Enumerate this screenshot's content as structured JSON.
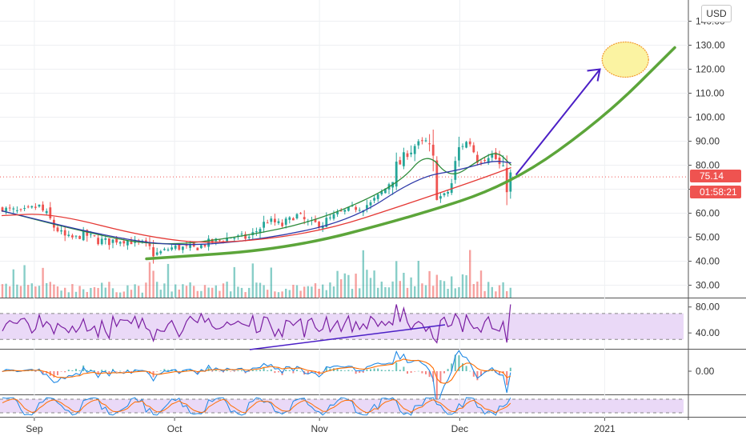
{
  "currency_button": "USD",
  "last_price": {
    "value": 75.14,
    "label": "75.14",
    "countdown": "01:58:21"
  },
  "colors": {
    "up": "#26a69a",
    "down": "#ef5350",
    "ma_green": "#2e8b3a",
    "ma_red": "#e53935",
    "ma_blue": "#2d39a8",
    "curve": "#5ca53a",
    "arrow": "#4b1fc6",
    "rsi": "#7b1fa2",
    "rsi_band": "#ead9f7",
    "target_fill": "#fbf3a2",
    "target_stroke": "#f29a2e",
    "macd_line": "#1e88e5",
    "signal_line": "#ff6d00"
  },
  "chart_data": [
    {
      "type": "candlestick",
      "x_tick_labels": [
        "Sep",
        "Oct",
        "Nov",
        "Dec",
        "2021"
      ],
      "y_tick_labels": [
        "30.00",
        "40.00",
        "50.00",
        "60.00",
        "70.00",
        "80.00",
        "90.00",
        "100.00",
        "110.00",
        "120.00",
        "130.00",
        "140.00"
      ],
      "ylim": [
        25,
        143
      ],
      "last_value": 75.14,
      "price_path": [
        {
          "date": "2020-08-25",
          "close": 62
        },
        {
          "date": "2020-08-29",
          "close": 60
        },
        {
          "date": "2020-09-02",
          "close": 63
        },
        {
          "date": "2020-09-05",
          "close": 55
        },
        {
          "date": "2020-09-08",
          "close": 49
        },
        {
          "date": "2020-09-12",
          "close": 51
        },
        {
          "date": "2020-09-16",
          "close": 48
        },
        {
          "date": "2020-09-20",
          "close": 49
        },
        {
          "date": "2020-09-24",
          "close": 47
        },
        {
          "date": "2020-09-27",
          "close": 43
        },
        {
          "date": "2020-10-01",
          "close": 46
        },
        {
          "date": "2020-10-05",
          "close": 45
        },
        {
          "date": "2020-10-09",
          "close": 48
        },
        {
          "date": "2020-10-13",
          "close": 50
        },
        {
          "date": "2020-10-17",
          "close": 50
        },
        {
          "date": "2020-10-21",
          "close": 57
        },
        {
          "date": "2020-10-24",
          "close": 55
        },
        {
          "date": "2020-10-27",
          "close": 59
        },
        {
          "date": "2020-10-30",
          "close": 55
        },
        {
          "date": "2020-11-02",
          "close": 56
        },
        {
          "date": "2020-11-05",
          "close": 60
        },
        {
          "date": "2020-11-08",
          "close": 62
        },
        {
          "date": "2020-11-12",
          "close": 64
        },
        {
          "date": "2020-11-15",
          "close": 70
        },
        {
          "date": "2020-11-18",
          "close": 80
        },
        {
          "date": "2020-11-21",
          "close": 88
        },
        {
          "date": "2020-11-24",
          "close": 90
        },
        {
          "date": "2020-11-27",
          "close": 66
        },
        {
          "date": "2020-11-29",
          "close": 70
        },
        {
          "date": "2020-12-01",
          "close": 88
        },
        {
          "date": "2020-12-03",
          "close": 90
        },
        {
          "date": "2020-12-05",
          "close": 82
        },
        {
          "date": "2020-12-07",
          "close": 86
        },
        {
          "date": "2020-12-09",
          "close": 82
        },
        {
          "date": "2020-12-11",
          "close": 73
        },
        {
          "date": "2020-12-12",
          "close": 75
        }
      ],
      "moving_averages": [
        {
          "color": "ma_green",
          "points": [
            {
              "date": "2020-08-25",
              "value": 61
            },
            {
              "date": "2020-09-10",
              "value": 53
            },
            {
              "date": "2020-09-27",
              "value": 46
            },
            {
              "date": "2020-10-15",
              "value": 50
            },
            {
              "date": "2020-11-01",
              "value": 57
            },
            {
              "date": "2020-11-18",
              "value": 72
            },
            {
              "date": "2020-11-24",
              "value": 86
            },
            {
              "date": "2020-11-29",
              "value": 74
            },
            {
              "date": "2020-12-05",
              "value": 82
            },
            {
              "date": "2020-12-09",
              "value": 86
            },
            {
              "date": "2020-12-12",
              "value": 80
            }
          ]
        },
        {
          "color": "ma_blue",
          "points": [
            {
              "date": "2020-08-25",
              "value": 61
            },
            {
              "date": "2020-09-15",
              "value": 51
            },
            {
              "date": "2020-10-01",
              "value": 46
            },
            {
              "date": "2020-10-20",
              "value": 49
            },
            {
              "date": "2020-11-08",
              "value": 57
            },
            {
              "date": "2020-11-22",
              "value": 75
            },
            {
              "date": "2020-12-01",
              "value": 78
            },
            {
              "date": "2020-12-08",
              "value": 82
            },
            {
              "date": "2020-12-12",
              "value": 81
            }
          ]
        },
        {
          "color": "ma_red",
          "points": [
            {
              "date": "2020-08-25",
              "value": 59
            },
            {
              "date": "2020-09-05",
              "value": 60
            },
            {
              "date": "2020-09-25",
              "value": 50
            },
            {
              "date": "2020-10-10",
              "value": 47
            },
            {
              "date": "2020-11-01",
              "value": 52
            },
            {
              "date": "2020-11-20",
              "value": 64
            },
            {
              "date": "2020-12-05",
              "value": 74
            },
            {
              "date": "2020-12-12",
              "value": 79
            }
          ]
        }
      ],
      "annotations": {
        "growth_curve": [
          {
            "date": "2020-09-25",
            "value": 41
          },
          {
            "date": "2020-10-25",
            "value": 45
          },
          {
            "date": "2020-11-20",
            "value": 58
          },
          {
            "date": "2020-12-12",
            "value": 72
          },
          {
            "date": "2021-01-01",
            "value": 100
          },
          {
            "date": "2021-01-16",
            "value": 129
          }
        ],
        "arrow": {
          "from": {
            "date": "2020-12-12",
            "value": 75
          },
          "to": {
            "date": "2020-12-31",
            "value": 120
          }
        },
        "target_ellipse": {
          "date": "2021-01-02",
          "value": 124
        }
      }
    },
    {
      "type": "bar",
      "name": "volume",
      "points": 120
    },
    {
      "type": "line",
      "name": "rsi",
      "y_tick_labels": [
        "80.00",
        "40.00"
      ],
      "ylim": [
        18,
        92
      ]
    },
    {
      "type": "line",
      "name": "macd",
      "y_tick_labels": [
        "0.00"
      ]
    },
    {
      "type": "line",
      "name": "stochastic"
    }
  ]
}
